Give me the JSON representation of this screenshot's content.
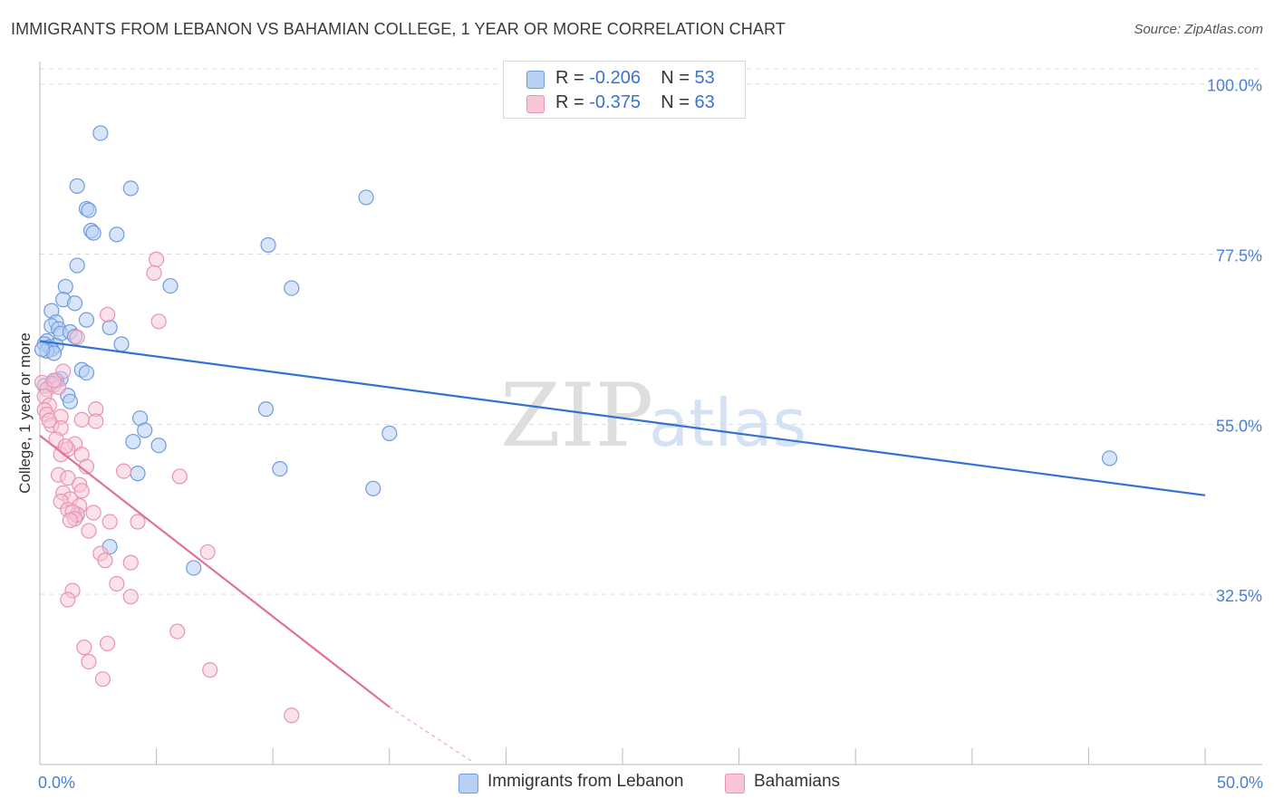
{
  "title": "IMMIGRANTS FROM LEBANON VS BAHAMIAN COLLEGE, 1 YEAR OR MORE CORRELATION CHART",
  "source": "Source: ZipAtlas.com",
  "watermark": {
    "zip": "ZIP",
    "atlas": "atlas"
  },
  "legend": {
    "rows": [
      {
        "r_label": "R =",
        "r_value": "-0.206",
        "n_label": "N =",
        "n_value": "53"
      },
      {
        "r_label": "R =",
        "r_value": "-0.375",
        "n_label": "N =",
        "n_value": "63"
      }
    ]
  },
  "bottom_legend": {
    "series1": "Immigrants from Lebanon",
    "series2": "Bahamians"
  },
  "chart_data": {
    "type": "scatter",
    "title": "IMMIGRANTS FROM LEBANON VS BAHAMIAN COLLEGE, 1 YEAR OR MORE CORRELATION CHART",
    "xlabel": "",
    "ylabel": "College, 1 year or more",
    "xlim": [
      0,
      50
    ],
    "ylim": [
      10,
      102
    ],
    "x_tick_labels": [
      {
        "value": 0,
        "label": "0.0%"
      },
      {
        "value": 50,
        "label": "50.0%"
      }
    ],
    "y_tick_labels": [
      {
        "value": 100,
        "label": "100.0%"
      },
      {
        "value": 77.5,
        "label": "77.5%"
      },
      {
        "value": 55,
        "label": "55.0%"
      },
      {
        "value": 32.5,
        "label": "32.5%"
      }
    ],
    "colors": {
      "series1": "#6f9be0",
      "series1_fill": "#b8d0f2",
      "series1_line": "#3272d3",
      "series2": "#e993b1",
      "series2_fill": "#f8c6d6",
      "series2_line": "#e0709a"
    },
    "series": [
      {
        "name": "Immigrants from Lebanon",
        "points": [
          [
            2.6,
            93.5
          ],
          [
            1.6,
            86.5
          ],
          [
            3.9,
            86.2
          ],
          [
            14.0,
            85.0
          ],
          [
            2.0,
            83.5
          ],
          [
            2.1,
            83.3
          ],
          [
            2.2,
            80.6
          ],
          [
            2.3,
            80.3
          ],
          [
            3.3,
            80.1
          ],
          [
            9.8,
            78.7
          ],
          [
            1.6,
            76.0
          ],
          [
            5.6,
            73.3
          ],
          [
            10.8,
            73.0
          ],
          [
            1.1,
            73.2
          ],
          [
            1.0,
            71.5
          ],
          [
            1.5,
            71.0
          ],
          [
            0.5,
            70.0
          ],
          [
            2.0,
            68.8
          ],
          [
            0.7,
            68.5
          ],
          [
            0.5,
            68.0
          ],
          [
            0.8,
            67.6
          ],
          [
            3.0,
            67.8
          ],
          [
            0.9,
            67.0
          ],
          [
            1.3,
            67.2
          ],
          [
            1.5,
            66.6
          ],
          [
            0.3,
            66.0
          ],
          [
            0.2,
            65.6
          ],
          [
            0.4,
            65.2
          ],
          [
            0.7,
            65.4
          ],
          [
            3.5,
            65.6
          ],
          [
            0.5,
            64.9
          ],
          [
            0.3,
            64.7
          ],
          [
            0.6,
            64.4
          ],
          [
            0.1,
            64.9
          ],
          [
            1.8,
            62.2
          ],
          [
            2.0,
            61.8
          ],
          [
            0.9,
            61.0
          ],
          [
            0.7,
            60.8
          ],
          [
            0.5,
            60.4
          ],
          [
            0.2,
            60.1
          ],
          [
            1.2,
            58.8
          ],
          [
            1.3,
            58.0
          ],
          [
            9.7,
            57.0
          ],
          [
            4.3,
            55.8
          ],
          [
            4.5,
            54.2
          ],
          [
            15.0,
            53.8
          ],
          [
            4.0,
            52.7
          ],
          [
            5.1,
            52.2
          ],
          [
            10.3,
            49.1
          ],
          [
            4.2,
            48.5
          ],
          [
            14.3,
            46.5
          ],
          [
            45.9,
            50.5
          ],
          [
            1.6,
            43.0
          ],
          [
            3.0,
            38.8
          ],
          [
            6.6,
            36.0
          ]
        ],
        "trendline": {
          "x": [
            0,
            50
          ],
          "y": [
            66.0,
            45.6
          ]
        }
      },
      {
        "name": "Bahamians",
        "points": [
          [
            5.0,
            76.8
          ],
          [
            4.9,
            75.0
          ],
          [
            2.9,
            69.5
          ],
          [
            5.1,
            68.6
          ],
          [
            1.6,
            66.5
          ],
          [
            0.1,
            60.5
          ],
          [
            0.6,
            60.2
          ],
          [
            0.3,
            59.6
          ],
          [
            0.8,
            59.9
          ],
          [
            0.2,
            58.7
          ],
          [
            0.4,
            57.5
          ],
          [
            2.4,
            57.0
          ],
          [
            0.2,
            56.9
          ],
          [
            0.3,
            56.3
          ],
          [
            0.9,
            56.0
          ],
          [
            1.8,
            55.6
          ],
          [
            0.5,
            54.9
          ],
          [
            0.9,
            54.5
          ],
          [
            2.4,
            55.4
          ],
          [
            0.7,
            53.0
          ],
          [
            1.5,
            52.4
          ],
          [
            0.9,
            51.0
          ],
          [
            1.2,
            51.7
          ],
          [
            1.8,
            51.0
          ],
          [
            1.1,
            52.1
          ],
          [
            2.0,
            49.4
          ],
          [
            0.8,
            48.3
          ],
          [
            3.6,
            48.8
          ],
          [
            6.0,
            48.1
          ],
          [
            1.2,
            47.9
          ],
          [
            1.7,
            47.0
          ],
          [
            1.0,
            45.9
          ],
          [
            1.3,
            45.1
          ],
          [
            1.8,
            46.2
          ],
          [
            0.9,
            44.8
          ],
          [
            1.7,
            44.2
          ],
          [
            2.3,
            43.3
          ],
          [
            1.6,
            43.1
          ],
          [
            1.2,
            43.7
          ],
          [
            1.4,
            43.4
          ],
          [
            1.5,
            42.5
          ],
          [
            1.3,
            42.3
          ],
          [
            3.0,
            42.1
          ],
          [
            4.2,
            42.1
          ],
          [
            2.1,
            40.9
          ],
          [
            2.6,
            37.9
          ],
          [
            7.2,
            38.1
          ],
          [
            2.8,
            37.0
          ],
          [
            3.9,
            36.7
          ],
          [
            3.3,
            33.9
          ],
          [
            1.4,
            33.0
          ],
          [
            3.9,
            32.2
          ],
          [
            1.2,
            31.8
          ],
          [
            5.9,
            27.6
          ],
          [
            2.9,
            26.0
          ],
          [
            1.9,
            25.5
          ],
          [
            2.1,
            23.6
          ],
          [
            7.3,
            22.5
          ],
          [
            2.7,
            21.3
          ],
          [
            10.8,
            16.5
          ],
          [
            0.4,
            55.5
          ],
          [
            0.6,
            60.8
          ],
          [
            1.0,
            62.0
          ]
        ],
        "trendline": {
          "x": [
            0,
            15
          ],
          "y": [
            53.5,
            17.6
          ]
        },
        "trendline_dashed": {
          "x": [
            15,
            18.5
          ],
          "y": [
            17.6,
            10.5
          ]
        }
      }
    ]
  }
}
